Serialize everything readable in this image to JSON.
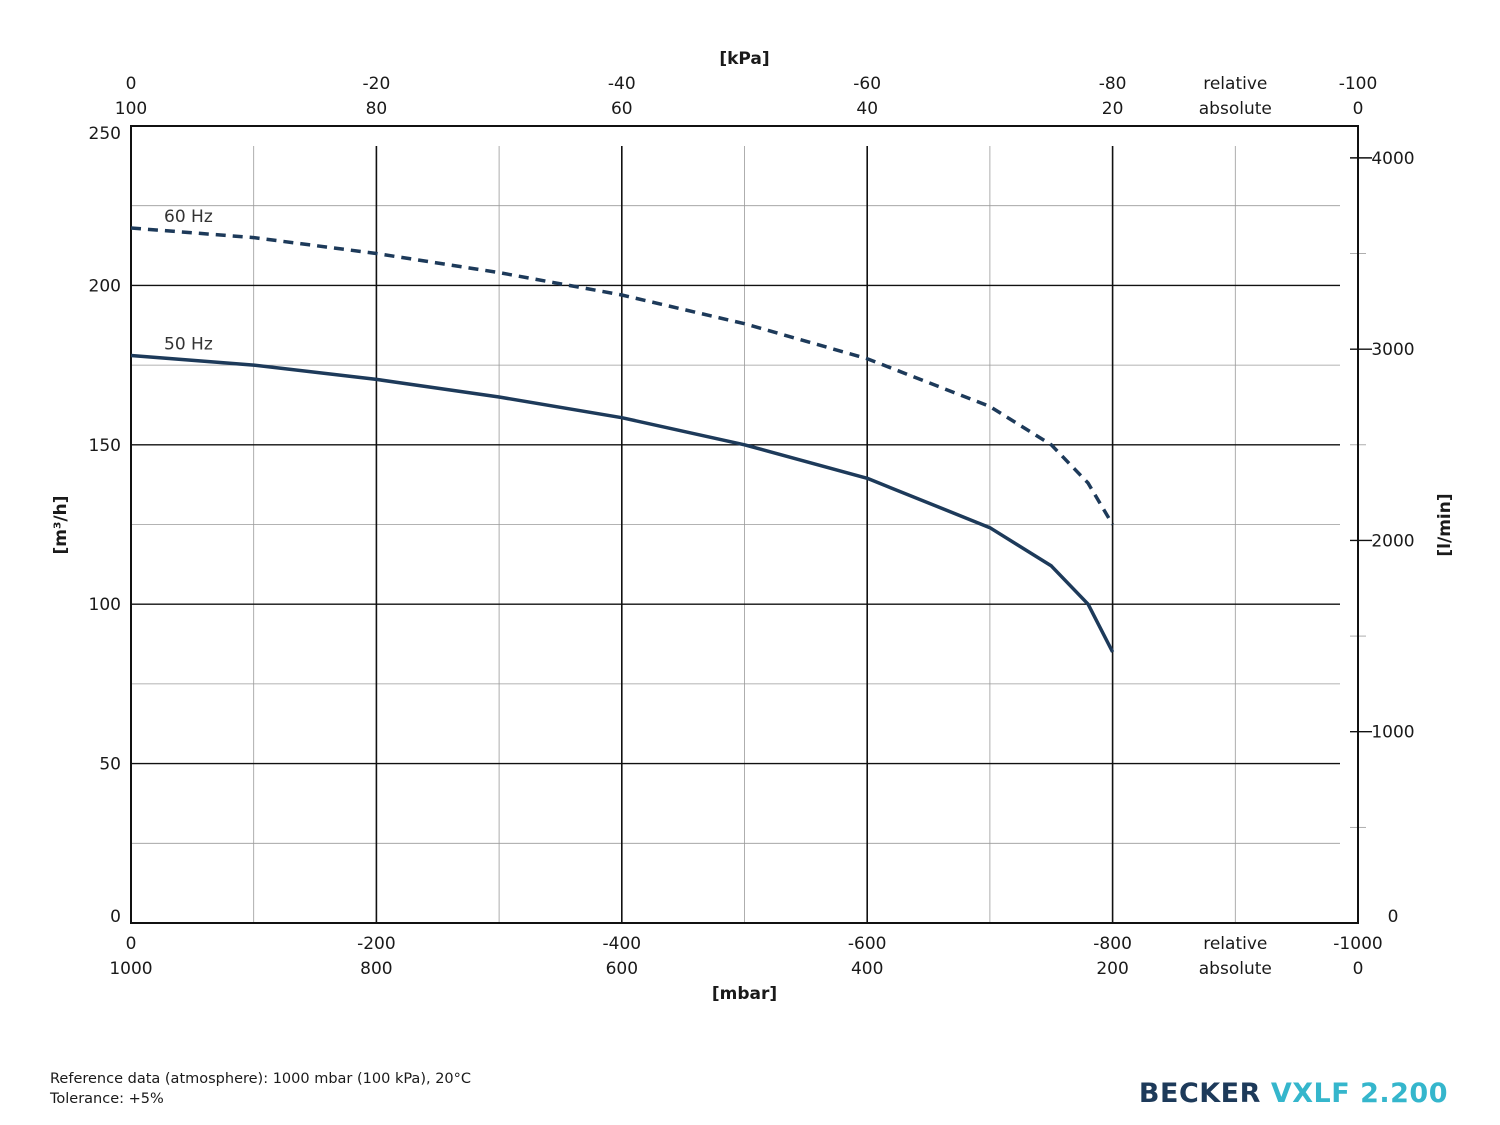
{
  "chart_data": {
    "type": "line",
    "x_bottom_relative_label": "relative",
    "x_bottom_absolute_label": "absolute",
    "x_bottom_unit": "[mbar]",
    "x_bottom_relative_ticks": [
      "0",
      "-200",
      "-400",
      "-600",
      "-800",
      "-1000"
    ],
    "x_bottom_absolute_ticks": [
      "1000",
      "800",
      "600",
      "400",
      "200",
      "0"
    ],
    "x_top_unit": "[kPa]",
    "x_top_relative_ticks": [
      "0",
      "-20",
      "-40",
      "-60",
      "-80",
      "-100"
    ],
    "x_top_absolute_ticks": [
      "100",
      "80",
      "60",
      "40",
      "20",
      "0"
    ],
    "x_top_relative_label": "relative",
    "x_top_absolute_label": "absolute",
    "xlim": [
      0,
      -1000
    ],
    "ylabel": "[m³/h]",
    "ylim": [
      0,
      250
    ],
    "y_ticks": [
      "0",
      "50",
      "100",
      "150",
      "200",
      "250"
    ],
    "y2label": "[l/min]",
    "y2lim": [
      0,
      4166.67
    ],
    "y2_ticks": [
      "0",
      "1000",
      "2000",
      "3000",
      "4000"
    ],
    "grid": true,
    "series": [
      {
        "name": "50 Hz",
        "style": "solid",
        "color": "#1d3a5a",
        "x": [
          0,
          -100,
          -200,
          -300,
          -400,
          -500,
          -600,
          -700,
          -750,
          -780,
          -800
        ],
        "y": [
          178,
          175,
          170.5,
          165,
          158.5,
          150,
          139.5,
          124,
          112,
          100,
          85
        ]
      },
      {
        "name": "60 Hz",
        "style": "dashed",
        "color": "#1d3a5a",
        "x": [
          0,
          -100,
          -200,
          -300,
          -400,
          -500,
          -600,
          -700,
          -750,
          -780,
          -800
        ],
        "y": [
          218,
          215,
          210,
          204,
          197,
          188,
          177,
          162,
          150,
          138,
          125
        ]
      }
    ]
  },
  "footer": {
    "reference": "Reference data (atmosphere): 1000 mbar (100 kPa), 20°C",
    "tolerance": "Tolerance: +5%"
  },
  "brand": {
    "name": "BECKER",
    "model": "VXLF 2.200"
  },
  "colors": {
    "curve": "#1d3a5a",
    "brand_dark": "#1d3a5a",
    "brand_accent": "#35b6cc"
  }
}
